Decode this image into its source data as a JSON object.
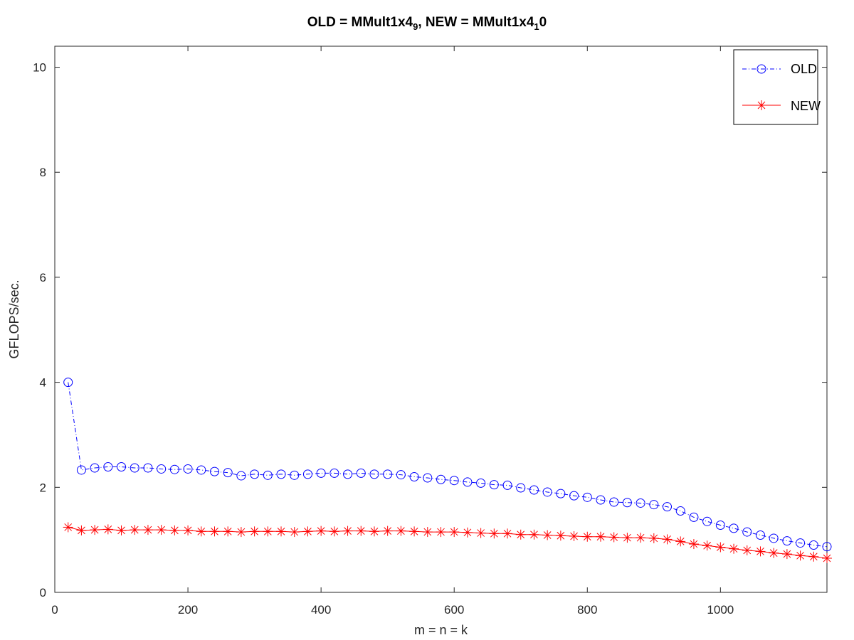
{
  "chart_data": {
    "type": "line",
    "title": {
      "part1": "OLD = MMult1x4",
      "sub1": "9",
      "part2": ", NEW = MMult1x4",
      "sub2": "1",
      "part3": "0"
    },
    "xlabel": "m = n = k",
    "ylabel": "GFLOPS/sec.",
    "xlim": [
      0,
      1160
    ],
    "ylim": [
      0,
      10.4
    ],
    "xticks": [
      0,
      200,
      400,
      600,
      800,
      1000
    ],
    "yticks": [
      0,
      2,
      4,
      6,
      8,
      10
    ],
    "grid": false,
    "legend_position": "top-right",
    "x": [
      20,
      40,
      60,
      80,
      100,
      120,
      140,
      160,
      180,
      200,
      220,
      240,
      260,
      280,
      300,
      320,
      340,
      360,
      380,
      400,
      420,
      440,
      460,
      480,
      500,
      520,
      540,
      560,
      580,
      600,
      620,
      640,
      660,
      680,
      700,
      720,
      740,
      760,
      780,
      800,
      820,
      840,
      860,
      880,
      900,
      920,
      940,
      960,
      980,
      1000,
      1020,
      1040,
      1060,
      1080,
      1100,
      1120,
      1140,
      1160
    ],
    "series": [
      {
        "name": "OLD",
        "color": "#0000ff",
        "marker": "circle",
        "line_style": "dash-dot",
        "values": [
          4.0,
          2.33,
          2.37,
          2.39,
          2.39,
          2.37,
          2.37,
          2.35,
          2.34,
          2.35,
          2.33,
          2.3,
          2.28,
          2.22,
          2.25,
          2.23,
          2.25,
          2.23,
          2.25,
          2.27,
          2.27,
          2.25,
          2.27,
          2.25,
          2.25,
          2.24,
          2.2,
          2.18,
          2.15,
          2.13,
          2.1,
          2.08,
          2.05,
          2.04,
          1.99,
          1.95,
          1.91,
          1.88,
          1.84,
          1.81,
          1.76,
          1.72,
          1.71,
          1.7,
          1.67,
          1.63,
          1.55,
          1.43,
          1.35,
          1.28,
          1.22,
          1.15,
          1.09,
          1.03,
          0.98,
          0.94,
          0.9,
          0.87
        ]
      },
      {
        "name": "NEW",
        "color": "#ff0000",
        "marker": "asterisk",
        "line_style": "solid",
        "values": [
          1.24,
          1.18,
          1.19,
          1.2,
          1.18,
          1.19,
          1.19,
          1.19,
          1.18,
          1.18,
          1.16,
          1.16,
          1.16,
          1.15,
          1.16,
          1.16,
          1.16,
          1.15,
          1.16,
          1.17,
          1.16,
          1.17,
          1.17,
          1.16,
          1.17,
          1.17,
          1.16,
          1.15,
          1.15,
          1.15,
          1.14,
          1.13,
          1.12,
          1.12,
          1.1,
          1.1,
          1.09,
          1.08,
          1.07,
          1.06,
          1.06,
          1.05,
          1.04,
          1.04,
          1.03,
          1.01,
          0.97,
          0.92,
          0.89,
          0.86,
          0.83,
          0.8,
          0.78,
          0.75,
          0.73,
          0.7,
          0.68,
          0.65
        ]
      }
    ]
  }
}
